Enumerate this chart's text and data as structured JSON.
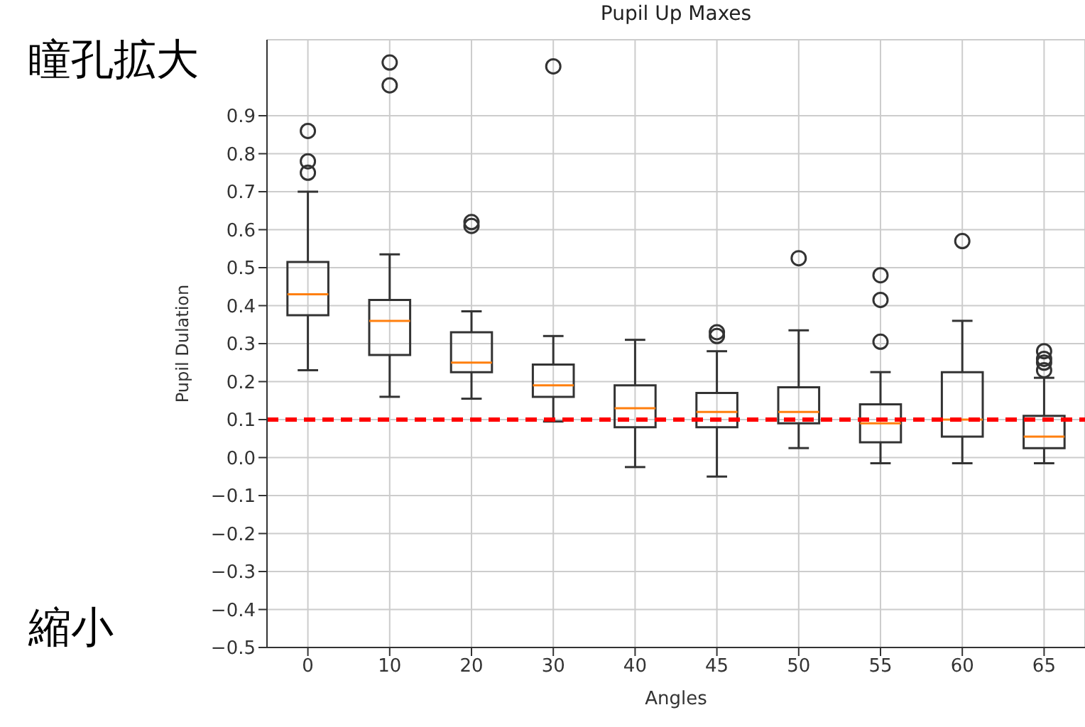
{
  "chart_data": {
    "type": "box",
    "title": "Pupil Up Maxes",
    "xlabel": "Angles",
    "ylabel": "Pupil Dulation",
    "categories": [
      "0",
      "10",
      "20",
      "30",
      "40",
      "45",
      "50",
      "55",
      "60",
      "65"
    ],
    "color": "#333333",
    "boxes": [
      {
        "low": 0.23,
        "q1": 0.375,
        "median": 0.43,
        "q3": 0.515,
        "high": 0.7,
        "outliers": [
          0.75,
          0.78,
          0.86
        ]
      },
      {
        "low": 0.16,
        "q1": 0.27,
        "median": 0.36,
        "q3": 0.415,
        "high": 0.535,
        "outliers": [
          0.98,
          1.04
        ]
      },
      {
        "low": 0.155,
        "q1": 0.225,
        "median": 0.25,
        "q3": 0.33,
        "high": 0.385,
        "outliers": [
          0.61,
          0.62
        ]
      },
      {
        "low": 0.095,
        "q1": 0.16,
        "median": 0.19,
        "q3": 0.245,
        "high": 0.32,
        "outliers": [
          1.03
        ]
      },
      {
        "low": -0.025,
        "q1": 0.08,
        "median": 0.13,
        "q3": 0.19,
        "high": 0.31
      },
      {
        "low": -0.05,
        "q1": 0.08,
        "median": 0.12,
        "q3": 0.17,
        "high": 0.28,
        "outliers": [
          0.32,
          0.33
        ]
      },
      {
        "low": 0.025,
        "q1": 0.09,
        "median": 0.12,
        "q3": 0.185,
        "high": 0.335,
        "outliers": [
          0.525
        ]
      },
      {
        "low": -0.015,
        "q1": 0.04,
        "median": 0.09,
        "q3": 0.14,
        "high": 0.225,
        "outliers": [
          0.305,
          0.415,
          0.48
        ]
      },
      {
        "low": -0.015,
        "q1": 0.055,
        "median": 0.1,
        "q3": 0.225,
        "high": 0.36,
        "outliers": [
          0.57
        ]
      },
      {
        "low": -0.015,
        "q1": 0.025,
        "median": 0.055,
        "q3": 0.11,
        "high": 0.21,
        "outliers": [
          0.23,
          0.25,
          0.26,
          0.28
        ]
      }
    ],
    "ylim": [
      -0.5,
      1.1
    ],
    "yticks": [
      {
        "value": -0.5,
        "label": "−0.5"
      },
      {
        "value": -0.4,
        "label": "−0.4"
      },
      {
        "value": -0.3,
        "label": "−0.3"
      },
      {
        "value": -0.2,
        "label": "−0.2"
      },
      {
        "value": -0.1,
        "label": "−0.1"
      },
      {
        "value": 0,
        "label": "0.0"
      },
      {
        "value": 0.1,
        "label": "0.1"
      },
      {
        "value": 0.2,
        "label": "0.2"
      },
      {
        "value": 0.3,
        "label": "0.3"
      },
      {
        "value": 0.4,
        "label": "0.4"
      },
      {
        "value": 0.5,
        "label": "0.5"
      },
      {
        "value": 0.6,
        "label": "0.6"
      },
      {
        "value": 0.7,
        "label": "0.7"
      },
      {
        "value": 0.8,
        "label": "0.8"
      },
      {
        "value": 0.9,
        "label": "0.9"
      }
    ],
    "grid": true,
    "ref_lines": [
      {
        "axis": "y",
        "value": 0.1,
        "color": "#ff0000",
        "line_style": "dashed"
      }
    ],
    "annotations": [
      "瞳孔拡大",
      "縮小"
    ]
  }
}
